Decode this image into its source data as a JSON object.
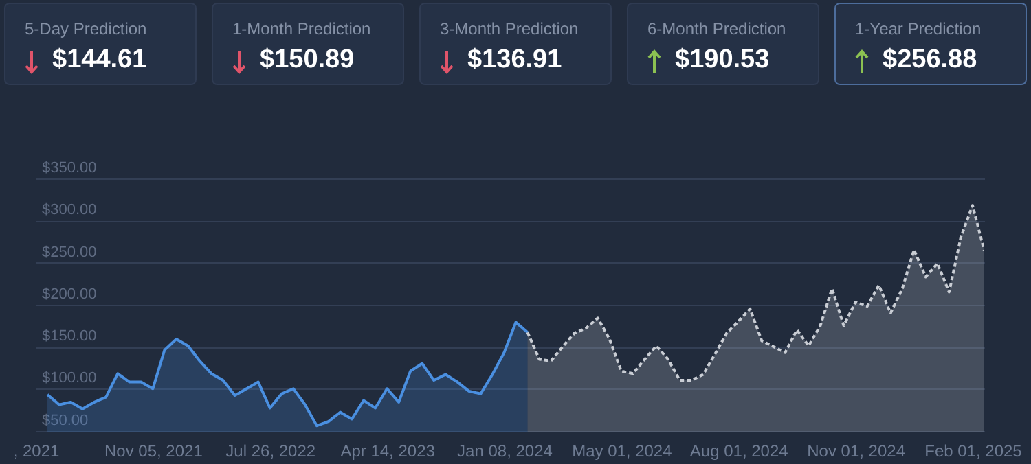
{
  "chart_data": [
    {
      "type": "other",
      "annotations": [
        "5-Day Prediction",
        "$144.61",
        "1-Month Prediction",
        "$150.89",
        "3-Month Prediction",
        "$136.91",
        "6-Month Prediction",
        "$190.53",
        "1-Year Prediction",
        "$256.88"
      ]
    },
    {
      "type": "area",
      "grid": "y",
      "categories": [
        ", 2021",
        null,
        null,
        null,
        null,
        null,
        null,
        null,
        null,
        null,
        "Nov 05, 2021",
        null,
        null,
        null,
        null,
        null,
        null,
        null,
        null,
        null,
        "Jul 26, 2022",
        null,
        null,
        null,
        null,
        null,
        null,
        null,
        null,
        null,
        "Apr 14, 2023",
        null,
        null,
        null,
        null,
        null,
        null,
        null,
        null,
        null,
        "Jan 08, 2024",
        null,
        null,
        null,
        null,
        null,
        null,
        null,
        null,
        null,
        "May 01, 2024",
        null,
        null,
        null,
        null,
        null,
        null,
        null,
        null,
        null,
        "Aug 01, 2024",
        null,
        null,
        null,
        null,
        null,
        null,
        null,
        null,
        null,
        "Nov 01, 2024",
        null,
        null,
        null,
        null,
        null,
        null,
        null,
        null,
        null,
        "Feb 01, 2025",
        null
      ],
      "ylim": [
        48,
        350
      ],
      "yticks": [
        {
          "value": 50,
          "label": "$50.00"
        },
        {
          "value": 100,
          "label": "$100.00"
        },
        {
          "value": 150,
          "label": "$150.00"
        },
        {
          "value": 200,
          "label": "$200.00"
        },
        {
          "value": 250,
          "label": "$250.00"
        },
        {
          "value": 300,
          "label": "$300.00"
        },
        {
          "value": 350,
          "label": "$350.00"
        }
      ],
      "series": [
        {
          "color": "#4a8fe0",
          "line_style": "solid",
          "values": [
            null,
            93,
            81,
            84,
            76,
            84,
            90,
            118,
            108,
            108,
            100,
            146,
            159,
            151,
            133,
            118,
            110,
            92,
            100,
            108,
            77,
            94,
            100,
            81,
            56,
            61,
            72,
            64,
            86,
            77,
            100,
            84,
            121,
            130,
            110,
            117,
            108,
            97,
            94,
            117,
            143,
            179,
            167,
            null,
            null,
            null,
            null,
            null,
            null,
            null,
            null,
            null,
            null,
            null,
            null,
            null,
            null,
            null,
            null,
            null,
            null,
            null,
            null,
            null,
            null,
            null,
            null,
            null,
            null,
            null,
            null,
            null,
            null,
            null,
            null,
            null,
            null,
            null,
            null,
            null,
            null,
            null
          ]
        },
        {
          "color": "#c9cdd4",
          "line_style": "dashed",
          "values": [
            null,
            null,
            null,
            null,
            null,
            null,
            null,
            null,
            null,
            null,
            null,
            null,
            null,
            null,
            null,
            null,
            null,
            null,
            null,
            null,
            null,
            null,
            null,
            null,
            null,
            null,
            null,
            null,
            null,
            null,
            null,
            null,
            null,
            null,
            null,
            null,
            null,
            null,
            null,
            null,
            null,
            null,
            167,
            135,
            133,
            150,
            166,
            172,
            184,
            159,
            121,
            118,
            135,
            151,
            135,
            110,
            110,
            117,
            141,
            166,
            180,
            195,
            157,
            150,
            143,
            170,
            151,
            175,
            219,
            175,
            203,
            198,
            223,
            190,
            219,
            265,
            233,
            249,
            215,
            280,
            318,
            264
          ]
        }
      ]
    }
  ]
}
